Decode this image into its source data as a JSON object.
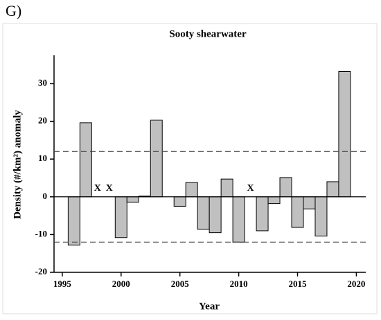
{
  "chart_data": {
    "type": "bar",
    "panel_label": "G)",
    "title": "Sooty shearwater",
    "x_label": "Year",
    "y_label": "Density (#/km²) anomaly",
    "x": [
      1996,
      1997,
      2000,
      2001,
      2002,
      2003,
      2005,
      2006,
      2007,
      2008,
      2009,
      2010,
      2012,
      2013,
      2014,
      2015,
      2016,
      2017,
      2018,
      2019
    ],
    "values": [
      -12.8,
      19.6,
      -10.8,
      -1.4,
      0.2,
      20.3,
      -2.5,
      3.8,
      -8.6,
      -9.5,
      4.7,
      -12.0,
      -9.0,
      -1.8,
      5.1,
      -8.1,
      -3.2,
      -10.4,
      4.0,
      33.2
    ],
    "color": "#c0c0c0",
    "xlim": [
      1994.3,
      2020.8
    ],
    "xticks": [
      1995,
      2000,
      2005,
      2010,
      2015,
      2020
    ],
    "ylim": [
      -20,
      37.5
    ],
    "yticks": [
      -20,
      -10,
      0,
      10,
      20,
      30
    ],
    "reference_lines": [
      12,
      -12
    ],
    "annotations": [
      {
        "text": "X",
        "x": 1998,
        "y": 2.2
      },
      {
        "text": "X",
        "x": 1999,
        "y": 2.2
      },
      {
        "text": "X",
        "x": 2011,
        "y": 2.2
      }
    ]
  }
}
